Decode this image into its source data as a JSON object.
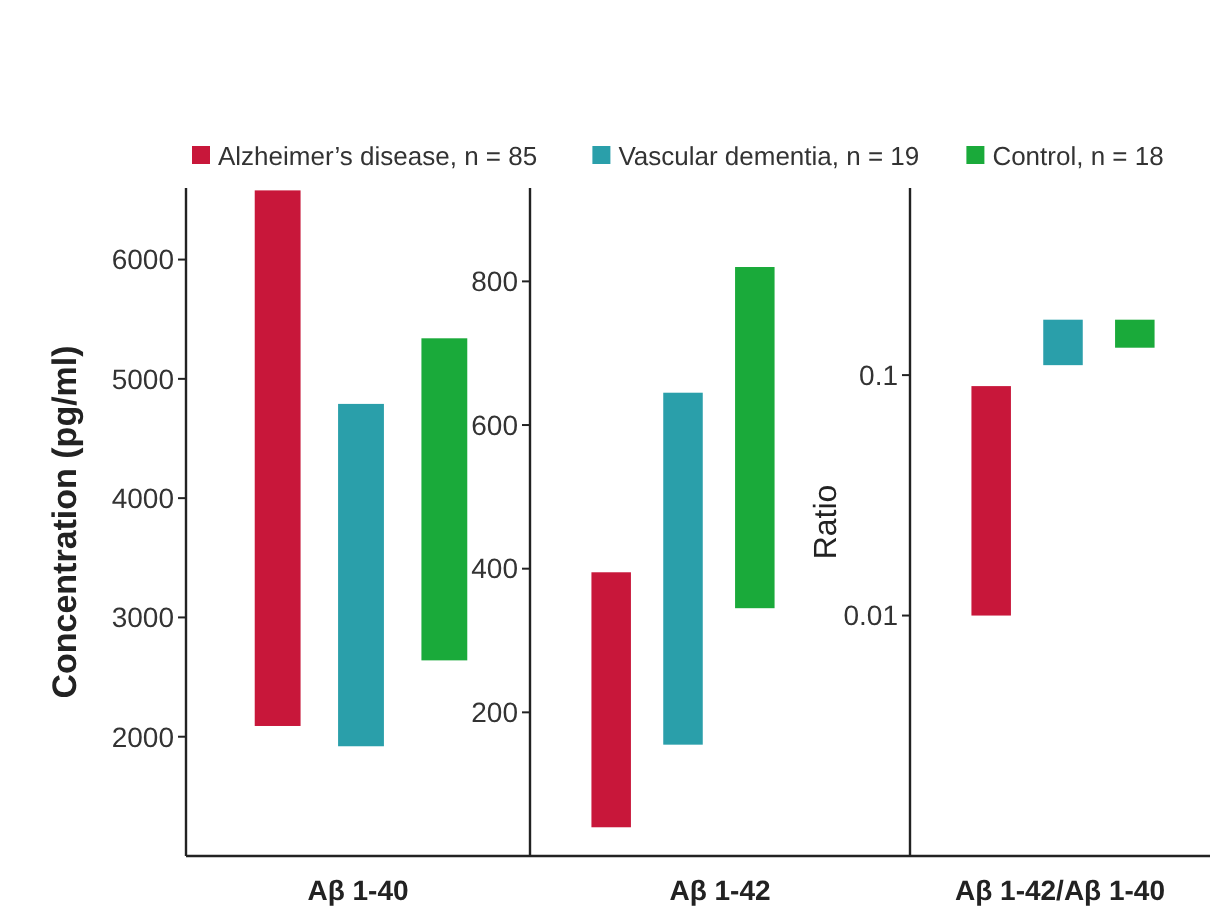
{
  "chart_data": [
    {
      "type": "bar",
      "xlabel": "Aβ 1-40",
      "ylabel": "Concentration (pg/ml)",
      "categories": [
        null
      ],
      "legend": "top",
      "ylim": [
        1000,
        6600
      ],
      "yticks": [
        2000,
        3000,
        4000,
        5000,
        6000
      ],
      "series": [
        {
          "name": "Alzheimer’s disease, n = 85",
          "color": "#c8173a",
          "values": [
            4490
          ],
          "base": [
            2090
          ]
        },
        {
          "name": "Vascular dementia, n = 19",
          "color": "#2a9faa",
          "values": [
            2870
          ],
          "base": [
            1920
          ]
        },
        {
          "name": "Control, n = 18",
          "color": "#1aaa3a",
          "values": [
            2700
          ],
          "base": [
            2640
          ]
        }
      ]
    },
    {
      "type": "bar",
      "xlabel": "Aβ 1-42",
      "categories": [
        null
      ],
      "ylim": [
        0,
        930
      ],
      "yticks": [
        200,
        400,
        600,
        800
      ],
      "series": [
        {
          "color": "#c8173a",
          "values": [
            355
          ],
          "base": [
            40
          ]
        },
        {
          "color": "#2a9faa",
          "values": [
            490
          ],
          "base": [
            155
          ]
        },
        {
          "color": "#1aaa3a",
          "values": [
            475
          ],
          "base": [
            345
          ]
        }
      ]
    },
    {
      "type": "bar",
      "xlabel": "Aβ 1-42/Aβ 1-40",
      "ylabel": "Ratio",
      "categories": [
        null
      ],
      "log": "y",
      "ylim": [
        0.001,
        0.6
      ],
      "yticks": [
        0.01,
        0.1
      ],
      "series": [
        {
          "color": "#c8173a",
          "values": [
            0.08
          ],
          "base": [
            0.01
          ]
        },
        {
          "color": "#2a9faa",
          "values": [
            0.06
          ],
          "base": [
            0.11
          ]
        },
        {
          "color": "#1aaa3a",
          "values": [
            0.04
          ],
          "base": [
            0.13
          ]
        }
      ]
    }
  ]
}
